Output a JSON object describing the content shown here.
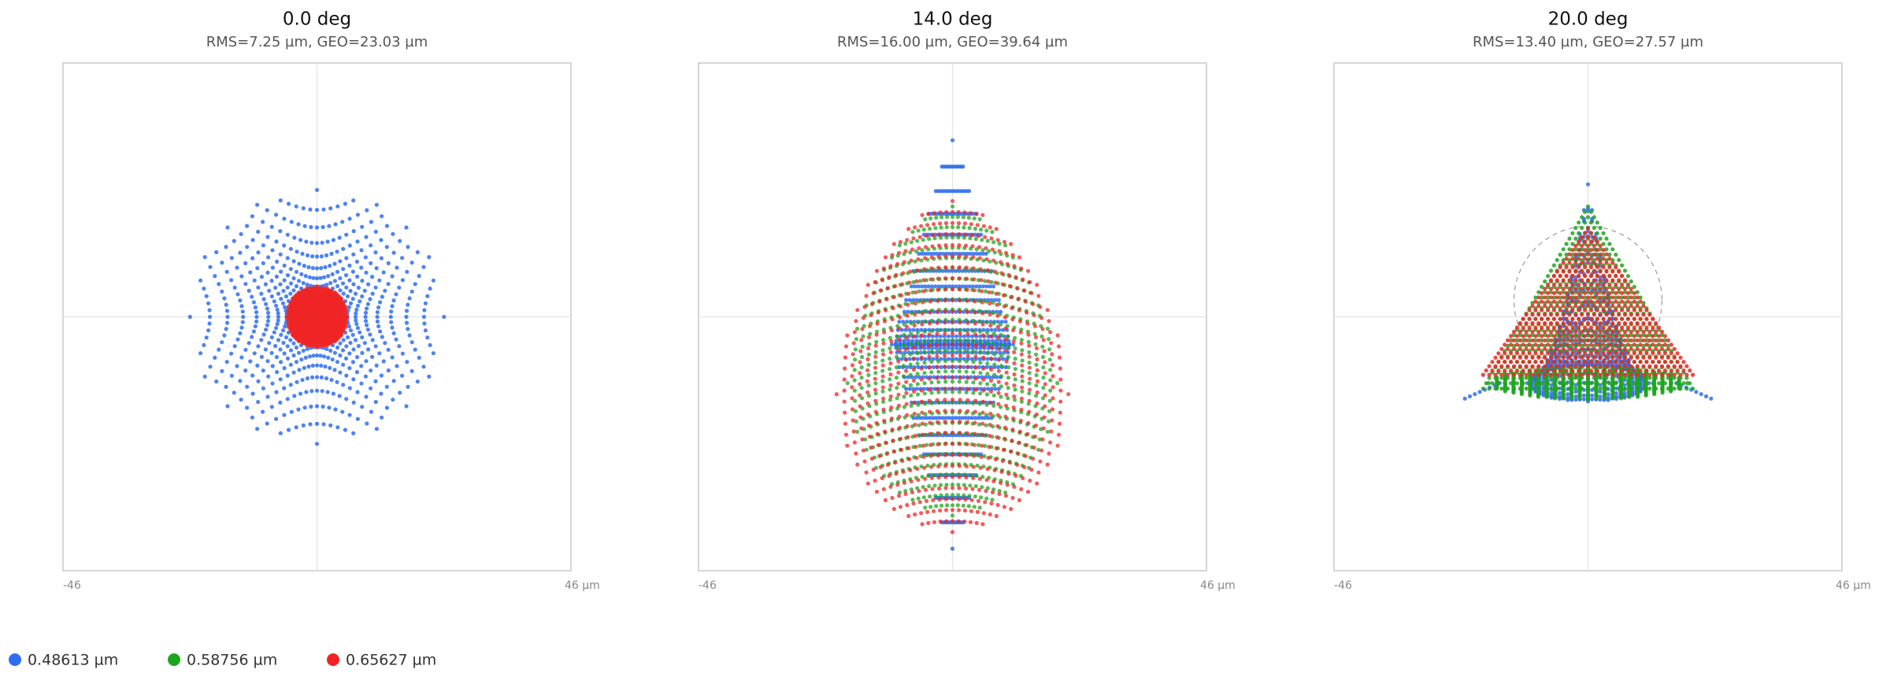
{
  "chart_data": [
    {
      "type": "scatter",
      "title": "0.0 deg",
      "subtitle": "RMS=7.25 µm, GEO=23.03 µm",
      "xlim": [
        -46,
        46
      ],
      "ylim": [
        -46,
        46
      ],
      "xticks": [
        {
          "value": -46,
          "label": "-46"
        },
        {
          "value": 46,
          "label": "46 µm"
        }
      ]
    },
    {
      "type": "scatter",
      "title": "14.0 deg",
      "subtitle": "RMS=16.00 µm, GEO=39.64 µm",
      "xlim": [
        -46,
        46
      ],
      "ylim": [
        -46,
        46
      ],
      "xticks": [
        {
          "value": -46,
          "label": "-46"
        },
        {
          "value": 46,
          "label": "46 µm"
        }
      ]
    },
    {
      "type": "scatter",
      "title": "20.0 deg",
      "subtitle": "RMS=13.40 µm, GEO=27.57 µm",
      "xlim": [
        -46,
        46
      ],
      "ylim": [
        -46,
        46
      ],
      "xticks": [
        {
          "value": -46,
          "label": "-46"
        },
        {
          "value": 46,
          "label": "46 µm"
        }
      ]
    }
  ],
  "legend": [
    {
      "name": "0.48613 µm",
      "color": "#2f6df0"
    },
    {
      "name": "0.58756 µm",
      "color": "#1ea51e"
    },
    {
      "name": "0.65627 µm",
      "color": "#f02424"
    }
  ]
}
